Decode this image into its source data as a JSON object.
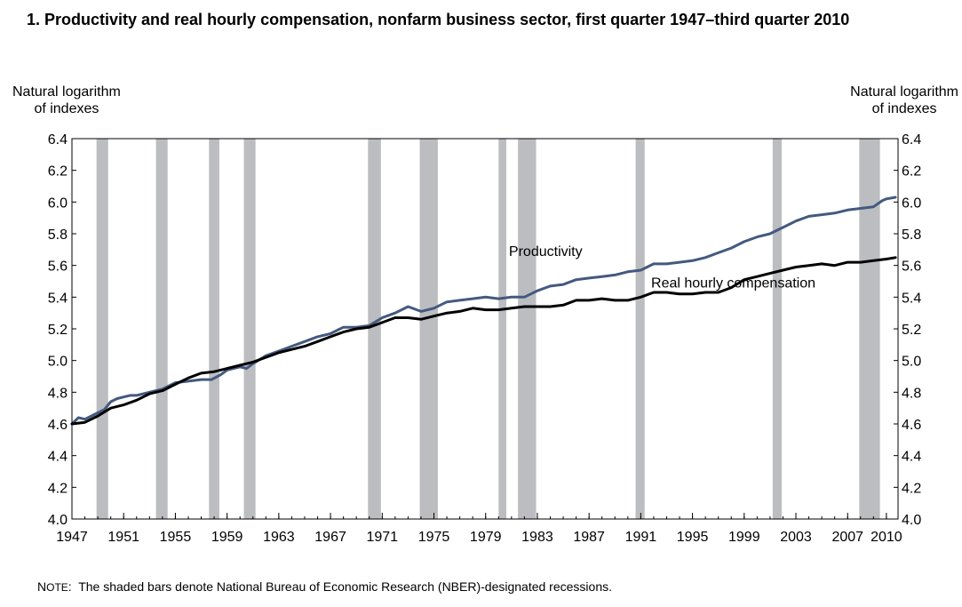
{
  "chart_data": {
    "type": "line",
    "title": "1. Productivity and real hourly compensation, nonfarm business sector, first quarter 1947–third quarter 2010",
    "ylabel_left": [
      "Natural logarithm",
      "of indexes"
    ],
    "ylabel_right": [
      "Natural logarithm",
      "of indexes"
    ],
    "ylim": [
      4.0,
      6.4
    ],
    "xlim": [
      1947.0,
      2010.9
    ],
    "yticks": [
      "4.0",
      "4.2",
      "4.4",
      "4.6",
      "4.8",
      "5.0",
      "5.2",
      "5.4",
      "5.6",
      "5.8",
      "6.0",
      "6.2",
      "6.4"
    ],
    "xticks": [
      "1947",
      "1951",
      "1955",
      "1959",
      "1963",
      "1967",
      "1971",
      "1975",
      "1979",
      "1983",
      "1987",
      "1991",
      "1995",
      "1999",
      "2003",
      "2007",
      "2010"
    ],
    "grid": false,
    "recessions": [
      [
        1948.9,
        1949.8
      ],
      [
        1953.5,
        1954.4
      ],
      [
        1957.6,
        1958.4
      ],
      [
        1960.3,
        1961.2
      ],
      [
        1969.9,
        1970.9
      ],
      [
        1973.9,
        1975.3
      ],
      [
        1980.0,
        1980.6
      ],
      [
        1981.5,
        1982.9
      ],
      [
        1990.6,
        1991.3
      ],
      [
        2001.2,
        2001.9
      ],
      [
        2007.9,
        2009.5
      ]
    ],
    "series": [
      {
        "name": "Productivity",
        "color": "#44597f",
        "x": [
          1947.0,
          1947.5,
          1948.0,
          1948.5,
          1949.0,
          1949.5,
          1950.0,
          1950.5,
          1951.0,
          1951.5,
          1952.0,
          1953.0,
          1954.0,
          1955.0,
          1956.0,
          1957.0,
          1957.8,
          1958.5,
          1959.0,
          1960.0,
          1960.5,
          1961.0,
          1962.0,
          1963.0,
          1964.0,
          1965.0,
          1966.0,
          1967.0,
          1968.0,
          1969.0,
          1970.0,
          1971.0,
          1972.0,
          1973.0,
          1974.0,
          1975.0,
          1976.0,
          1977.0,
          1978.0,
          1979.0,
          1980.0,
          1981.0,
          1982.0,
          1983.0,
          1984.0,
          1985.0,
          1986.0,
          1987.0,
          1988.0,
          1989.0,
          1990.0,
          1991.0,
          1992.0,
          1993.0,
          1994.0,
          1995.0,
          1996.0,
          1997.0,
          1998.0,
          1999.0,
          2000.0,
          2001.0,
          2002.0,
          2003.0,
          2004.0,
          2005.0,
          2006.0,
          2007.0,
          2008.0,
          2009.0,
          2009.7,
          2010.0,
          2010.7
        ],
        "values": [
          4.6,
          4.64,
          4.63,
          4.65,
          4.67,
          4.69,
          4.74,
          4.76,
          4.77,
          4.78,
          4.78,
          4.8,
          4.82,
          4.86,
          4.87,
          4.88,
          4.88,
          4.91,
          4.94,
          4.96,
          4.95,
          4.98,
          5.03,
          5.06,
          5.09,
          5.12,
          5.15,
          5.17,
          5.21,
          5.21,
          5.22,
          5.27,
          5.3,
          5.34,
          5.31,
          5.33,
          5.37,
          5.38,
          5.39,
          5.4,
          5.39,
          5.4,
          5.4,
          5.44,
          5.47,
          5.48,
          5.51,
          5.52,
          5.53,
          5.54,
          5.56,
          5.57,
          5.61,
          5.61,
          5.62,
          5.63,
          5.65,
          5.68,
          5.71,
          5.75,
          5.78,
          5.8,
          5.84,
          5.88,
          5.91,
          5.92,
          5.93,
          5.95,
          5.96,
          5.97,
          6.01,
          6.02,
          6.03
        ]
      },
      {
        "name": "Real hourly compensation",
        "color": "#000000",
        "x": [
          1947.0,
          1948.0,
          1949.0,
          1950.0,
          1951.0,
          1952.0,
          1953.0,
          1954.0,
          1955.0,
          1956.0,
          1957.0,
          1958.0,
          1959.0,
          1960.0,
          1961.0,
          1962.0,
          1963.0,
          1964.0,
          1965.0,
          1966.0,
          1967.0,
          1968.0,
          1969.0,
          1970.0,
          1971.0,
          1972.0,
          1973.0,
          1974.0,
          1975.0,
          1976.0,
          1977.0,
          1978.0,
          1979.0,
          1980.0,
          1981.0,
          1982.0,
          1983.0,
          1984.0,
          1985.0,
          1986.0,
          1987.0,
          1988.0,
          1989.0,
          1990.0,
          1991.0,
          1992.0,
          1993.0,
          1994.0,
          1995.0,
          1996.0,
          1997.0,
          1998.0,
          1999.0,
          2000.0,
          2001.0,
          2002.0,
          2003.0,
          2004.0,
          2005.0,
          2006.0,
          2007.0,
          2008.0,
          2009.0,
          2010.0,
          2010.7
        ],
        "values": [
          4.6,
          4.61,
          4.65,
          4.7,
          4.72,
          4.75,
          4.79,
          4.81,
          4.85,
          4.89,
          4.92,
          4.93,
          4.95,
          4.97,
          4.99,
          5.02,
          5.05,
          5.07,
          5.09,
          5.12,
          5.15,
          5.18,
          5.2,
          5.21,
          5.24,
          5.27,
          5.27,
          5.26,
          5.28,
          5.3,
          5.31,
          5.33,
          5.32,
          5.32,
          5.33,
          5.34,
          5.34,
          5.34,
          5.35,
          5.38,
          5.38,
          5.39,
          5.38,
          5.38,
          5.4,
          5.43,
          5.43,
          5.42,
          5.42,
          5.43,
          5.43,
          5.46,
          5.51,
          5.53,
          5.55,
          5.57,
          5.59,
          5.6,
          5.61,
          5.6,
          5.62,
          5.62,
          5.63,
          5.64,
          5.65
        ]
      }
    ],
    "annotations": [
      {
        "text": "Productivity",
        "x": 1980.8,
        "y": 5.66
      },
      {
        "text": "Real hourly compensation",
        "x": 1991.8,
        "y": 5.46
      }
    ]
  },
  "note": {
    "label": "Note",
    "text": "The shaded bars denote National Bureau of Economic Research (NBER)-designated recessions."
  }
}
